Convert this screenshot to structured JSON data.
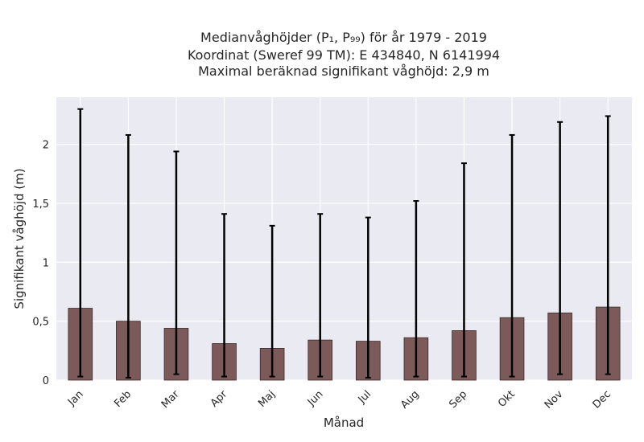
{
  "chart_data": {
    "type": "bar",
    "title_lines": [
      "Medianvåghöjder (P₁, P₉₉) för år 1979 - 2019",
      "Koordinat (Sweref 99 TM): E 434840, N 6141994",
      "Maximal beräknad signifikant våghöjd: 2,9 m"
    ],
    "xlabel": "Månad",
    "ylabel": "Signifikant våghöjd (m)",
    "categories": [
      "Jan",
      "Feb",
      "Mar",
      "Apr",
      "Maj",
      "Jun",
      "Jul",
      "Aug",
      "Sep",
      "Okt",
      "Nov",
      "Dec"
    ],
    "values": [
      0.61,
      0.5,
      0.44,
      0.31,
      0.27,
      0.34,
      0.33,
      0.36,
      0.42,
      0.53,
      0.57,
      0.62
    ],
    "err_low": [
      0.03,
      0.02,
      0.05,
      0.03,
      0.03,
      0.03,
      0.02,
      0.03,
      0.03,
      0.03,
      0.05,
      0.05
    ],
    "err_high": [
      2.3,
      2.08,
      1.94,
      1.41,
      1.31,
      1.41,
      1.38,
      1.52,
      1.84,
      2.08,
      2.19,
      2.24
    ],
    "ylim": [
      0,
      2.4
    ],
    "yticks": [
      0,
      0.5,
      1,
      1.5,
      2
    ],
    "ytick_labels": [
      "0",
      "0,5",
      "1",
      "1,5",
      "2"
    ],
    "grid": true,
    "colors": {
      "plot_bg": "#eaeaf2",
      "bar_fill": "#7d5a5a",
      "bar_edge": "#3a2a2a",
      "error_bar": "#000000",
      "grid": "#ffffff"
    }
  }
}
